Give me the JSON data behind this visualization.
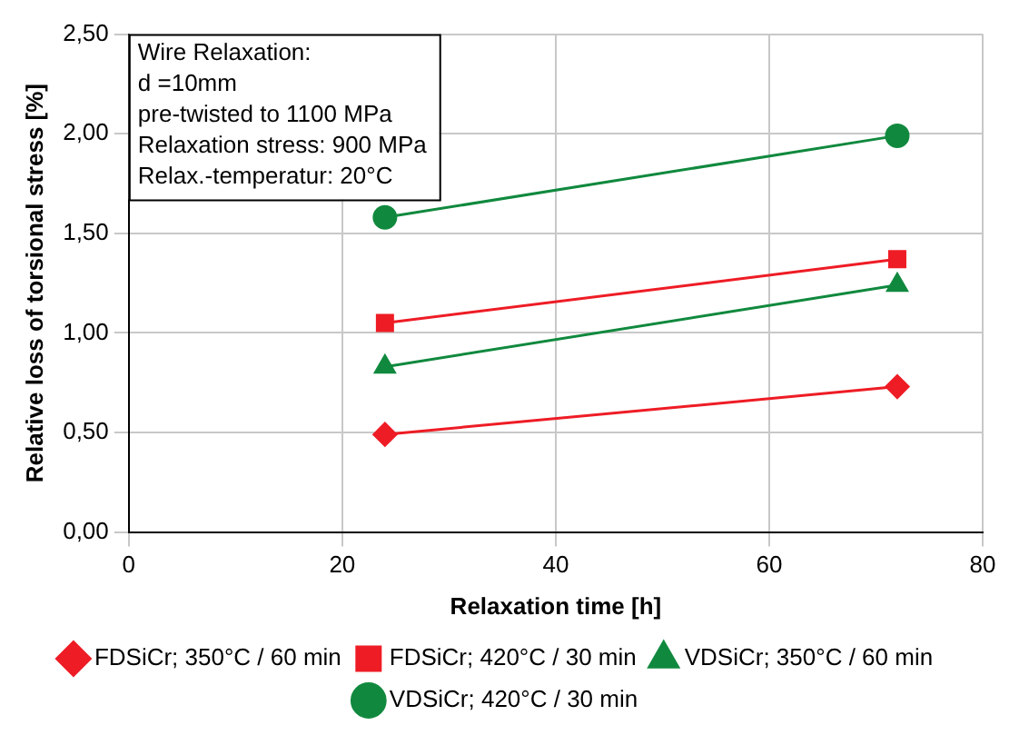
{
  "chart_data": {
    "type": "line",
    "xlabel": "Relaxation time [h]",
    "ylabel": "Relative loss of torsional stress [%]",
    "annotations": [
      "Wire Relaxation:",
      "d =10mm",
      "pre-twisted to 1100 MPa",
      "Relaxation stress: 900 MPa",
      "Relax.-temperatur: 20°C"
    ],
    "x": [
      24,
      72
    ],
    "series": [
      {
        "name": "FDSiCr; 350°C / 60 min",
        "color": "#ee1c25",
        "marker": "diamond",
        "values": [
          0.49,
          0.73
        ]
      },
      {
        "name": "FDSiCr; 420°C / 30 min",
        "color": "#ee1c25",
        "marker": "square",
        "values": [
          1.05,
          1.37
        ]
      },
      {
        "name": "VDSiCr; 350°C / 60 min",
        "color": "#10893e",
        "marker": "triangle",
        "values": [
          0.83,
          1.24
        ]
      },
      {
        "name": "VDSiCr; 420°C / 30 min",
        "color": "#10893e",
        "marker": "circle",
        "values": [
          1.58,
          1.99
        ]
      }
    ],
    "xlim": [
      0,
      80
    ],
    "xticks": [
      0,
      20,
      40,
      60,
      80
    ],
    "ylim": [
      0,
      2.5
    ],
    "yticks": [
      {
        "value": 0,
        "label": "0,00"
      },
      {
        "value": 0.5,
        "label": "0,50"
      },
      {
        "value": 1,
        "label": "1,00"
      },
      {
        "value": 1.5,
        "label": "1,50"
      },
      {
        "value": 2,
        "label": "2,00"
      },
      {
        "value": 2.5,
        "label": "2,50"
      }
    ],
    "grid": true,
    "legend": "bottom",
    "line_style": "solid"
  }
}
